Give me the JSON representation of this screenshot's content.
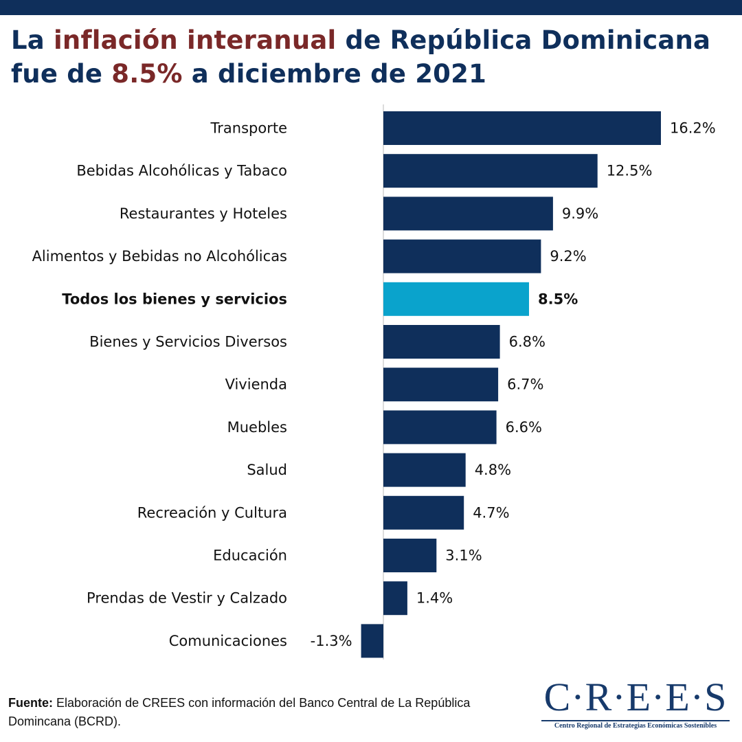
{
  "header": {
    "title_part1": "La ",
    "title_accent1": "inflación interanual",
    "title_part2": " de República Dominicana fue de ",
    "title_accent2": "8.5%",
    "title_part3": " a diciembre de 2021"
  },
  "chart_data": {
    "type": "bar",
    "orientation": "horizontal",
    "categories": [
      "Transporte",
      "Bebidas Alcohólicas y Tabaco",
      "Restaurantes y Hoteles",
      "Alimentos y Bebidas no Alcohólicas",
      "Todos los bienes y servicios",
      "Bienes y Servicios Diversos",
      "Vivienda",
      "Muebles",
      "Salud",
      "Recreación y Cultura",
      "Educación",
      "Prendas de Vestir y Calzado",
      "Comunicaciones"
    ],
    "values": [
      16.2,
      12.5,
      9.9,
      9.2,
      8.5,
      6.8,
      6.7,
      6.6,
      4.8,
      4.7,
      3.1,
      1.4,
      -1.3
    ],
    "value_labels": [
      "16.2%",
      "12.5%",
      "9.9%",
      "9.2%",
      "8.5%",
      "6.8%",
      "6.7%",
      "6.6%",
      "4.8%",
      "4.7%",
      "3.1%",
      "1.4%",
      "-1.3%"
    ],
    "highlight_category": "Todos los bienes y servicios",
    "unit": "%",
    "xlim": [
      -1.3,
      16.2
    ],
    "colors": {
      "bar": "#0f2f5b",
      "highlight": "#0aa3cc",
      "axis": "#d0d0d0"
    },
    "title": "La inflación interanual de República Dominicana fue de 8.5% a diciembre de 2021",
    "xlabel": "",
    "ylabel": ""
  },
  "footer": {
    "source_label": "Fuente:",
    "source_text": " Elaboración de CREES con información del Banco Central de La República Domincana (BCRD)."
  },
  "logo": {
    "wordmark": "C·R·E·E·S",
    "subtitle": "Centro Regional de Estrategias Económicas Sostenibles"
  }
}
